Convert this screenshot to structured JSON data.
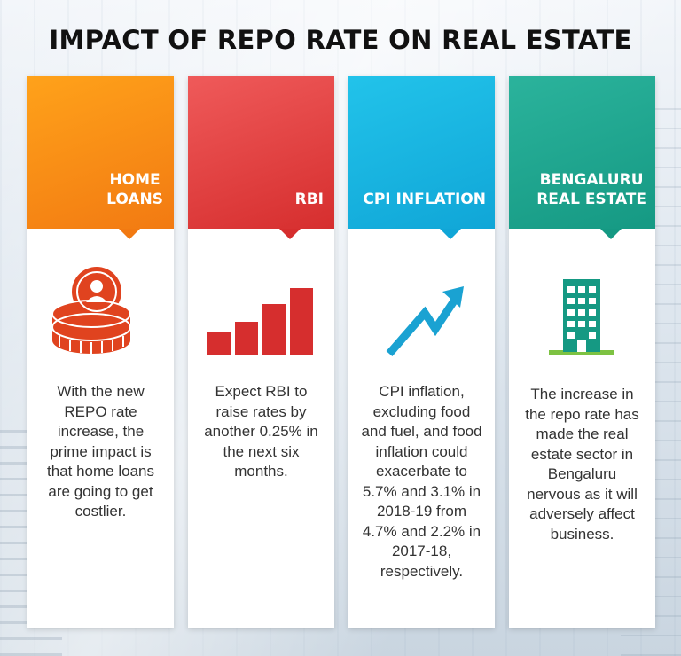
{
  "title": "IMPACT OF REPO RATE ON REAL ESTATE",
  "colors": {
    "home_loans": "#f27a12",
    "rbi": "#d62e2e",
    "cpi": "#10a6d7",
    "bengaluru": "#159983",
    "building_base": "#7dc242"
  },
  "cards": [
    {
      "heading_line1": "HOME",
      "heading_line2": "LOANS",
      "icon": "coin-stack-icon",
      "text": "With the new REPO rate increase, the prime impact is that home loans are going to get costlier."
    },
    {
      "heading_line1": "RBI",
      "heading_line2": "",
      "icon": "bar-chart-icon",
      "text": "Expect RBI to raise rates by another 0.25% in the next six months."
    },
    {
      "heading_line1": "CPI INFLATION",
      "heading_line2": "",
      "icon": "trend-up-arrow-icon",
      "text": "CPI inflation, excluding food and fuel, and food inflation could exacerbate to 5.7% and 3.1% in 2018-19 from 4.7% and 2.2% in 2017-18, respectively."
    },
    {
      "heading_line1": "BENGALURU",
      "heading_line2": "REAL ESTATE",
      "icon": "building-icon",
      "text": "The increase in the repo rate has made the real estate sector in Bengaluru nervous as it will adversely affect business."
    }
  ]
}
